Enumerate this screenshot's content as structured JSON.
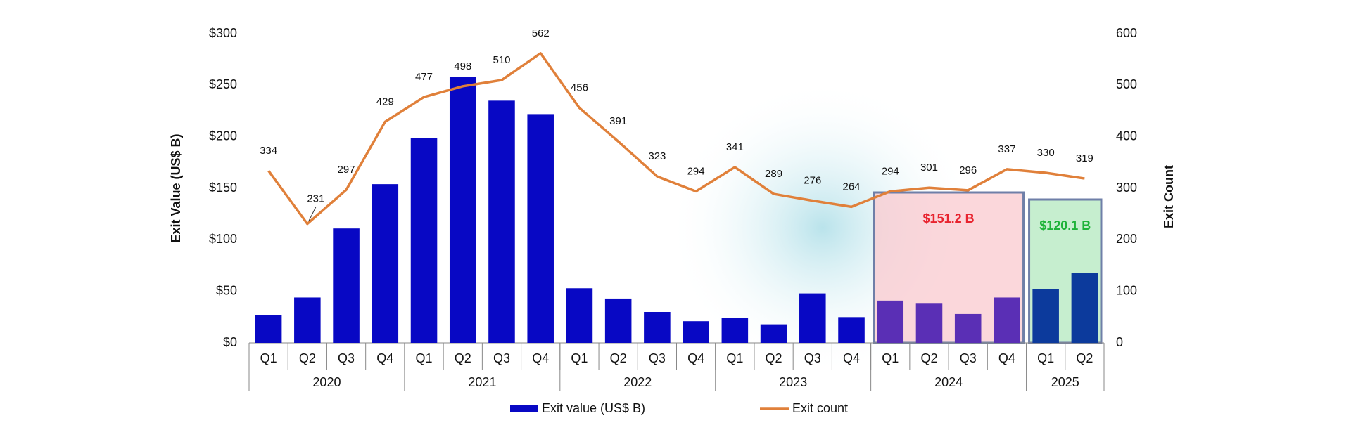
{
  "chart_data": {
    "type": "bar-line",
    "y_axis_label": "Exit Value (US$ B)",
    "y2_axis_label": "Exit Count",
    "ylim": [
      0,
      300
    ],
    "yticks": [
      {
        "value": 0,
        "label": "$0"
      },
      {
        "value": 50,
        "label": "$50"
      },
      {
        "value": 100,
        "label": "$100"
      },
      {
        "value": 150,
        "label": "$150"
      },
      {
        "value": 200,
        "label": "$200"
      },
      {
        "value": 250,
        "label": "$250"
      },
      {
        "value": 300,
        "label": "$300"
      }
    ],
    "y2lim": [
      0,
      600
    ],
    "y2ticks": [
      0,
      100,
      200,
      300,
      400,
      500,
      600
    ],
    "groups": [
      {
        "label": "2020",
        "quarters": [
          "Q1",
          "Q2",
          "Q3",
          "Q4"
        ]
      },
      {
        "label": "2021",
        "quarters": [
          "Q1",
          "Q2",
          "Q3",
          "Q4"
        ]
      },
      {
        "label": "2022",
        "quarters": [
          "Q1",
          "Q2",
          "Q3",
          "Q4"
        ]
      },
      {
        "label": "2023",
        "quarters": [
          "Q1",
          "Q2",
          "Q3",
          "Q4"
        ]
      },
      {
        "label": "2024",
        "quarters": [
          "Q1",
          "Q2",
          "Q3",
          "Q4"
        ],
        "bar_color": "#5a2fb5",
        "highlight": "#f9c9cf",
        "highlight_label": "$151.2 B",
        "highlight_label_color": "#e8242f"
      },
      {
        "label": "2025",
        "quarters": [
          "Q1",
          "Q2"
        ],
        "bar_color": "#0c3a9c",
        "highlight": "#b3e8bf",
        "highlight_label": "$120.1 B",
        "highlight_label_color": "#1fb33a"
      }
    ],
    "series": [
      {
        "name": "Exit value (US$ B)",
        "type": "bar",
        "color": "#0808c4",
        "values": [
          27,
          44,
          111,
          154,
          199,
          258,
          235,
          222,
          53,
          43,
          30,
          21,
          24,
          18,
          48,
          25,
          41,
          38,
          28,
          44,
          52,
          68
        ]
      },
      {
        "name": "Exit count",
        "type": "line",
        "axis": "y2",
        "color": "#e0803a",
        "values": [
          334,
          231,
          297,
          429,
          477,
          498,
          510,
          562,
          456,
          391,
          323,
          294,
          341,
          289,
          276,
          264,
          294,
          301,
          296,
          337,
          330,
          319
        ]
      }
    ]
  }
}
